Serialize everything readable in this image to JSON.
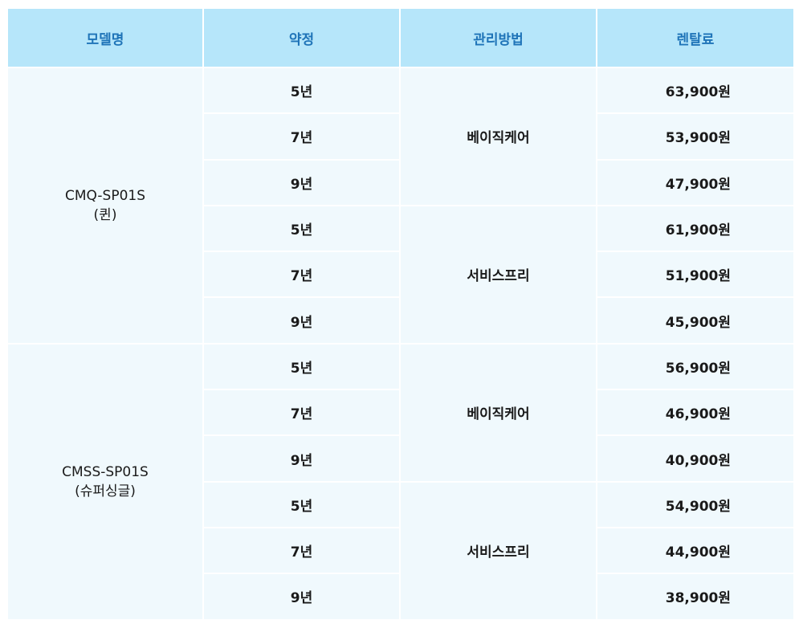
{
  "headers": [
    "모델명",
    "약정",
    "관리방법",
    "렌탈료"
  ],
  "models": [
    {
      "name": "CMQ-SP01S",
      "variant": "(퀸)",
      "methods": [
        {
          "label": "베이직케어",
          "rows": [
            {
              "term": "5년",
              "price": "63,900원"
            },
            {
              "term": "7년",
              "price": "53,900원"
            },
            {
              "term": "9년",
              "price": "47,900원"
            }
          ]
        },
        {
          "label": "서비스프리",
          "rows": [
            {
              "term": "5년",
              "price": "61,900원"
            },
            {
              "term": "7년",
              "price": "51,900원"
            },
            {
              "term": "9년",
              "price": "45,900원"
            }
          ]
        }
      ]
    },
    {
      "name": "CMSS-SP01S",
      "variant": "(슈퍼싱글)",
      "methods": [
        {
          "label": "베이직케어",
          "rows": [
            {
              "term": "5년",
              "price": "56,900원"
            },
            {
              "term": "7년",
              "price": "46,900원"
            },
            {
              "term": "9년",
              "price": "40,900원"
            }
          ]
        },
        {
          "label": "서비스프리",
          "rows": [
            {
              "term": "5년",
              "price": "54,900원"
            },
            {
              "term": "7년",
              "price": "44,900원"
            },
            {
              "term": "9년",
              "price": "38,900원"
            }
          ]
        }
      ]
    }
  ]
}
